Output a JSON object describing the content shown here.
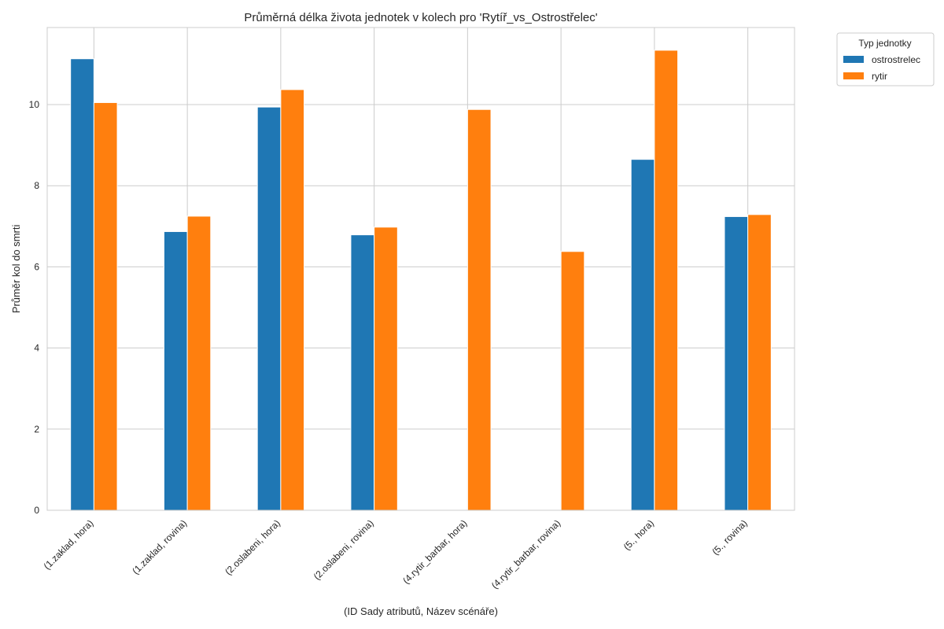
{
  "chart_data": {
    "type": "bar",
    "title": "Průměrná délka života jednotek v kolech pro 'Rytíř_vs_Ostrostřelec'",
    "xlabel": "(ID Sady atributů, Název scénáře)",
    "ylabel": "Průměr kol do smrti",
    "ylim": [
      0,
      11.9
    ],
    "yticks": [
      0,
      2,
      4,
      6,
      8,
      10
    ],
    "grid": true,
    "legend_title": "Typ jednotky",
    "legend_position": "outside-top-right",
    "categories": [
      "(1.zaklad, hora)",
      "(1.zaklad, rovina)",
      "(2.oslabeni, hora)",
      "(2.oslabeni, rovina)",
      "(4.rytir_barbar, hora)",
      "(4.rytir_barbar, rovina)",
      "(5., hora)",
      "(5., rovina)"
    ],
    "series": [
      {
        "name": "ostrostrelec",
        "color": "#1f77b4",
        "values": [
          11.13,
          6.87,
          9.94,
          6.79,
          null,
          null,
          8.65,
          7.24
        ]
      },
      {
        "name": "rytir",
        "color": "#ff7f0e",
        "values": [
          10.05,
          7.25,
          10.37,
          6.98,
          9.88,
          6.38,
          11.34,
          7.29
        ]
      }
    ]
  }
}
